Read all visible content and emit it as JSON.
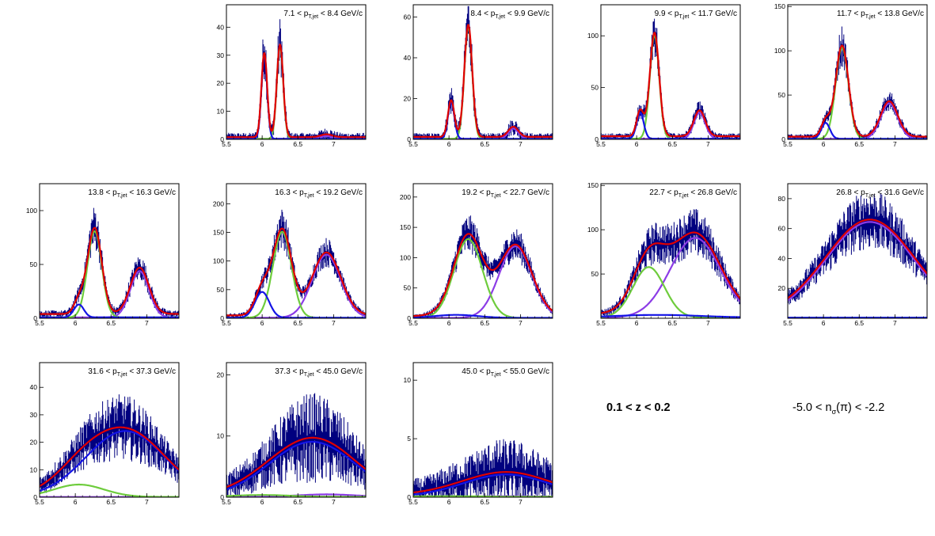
{
  "labels": {
    "z_range": "0.1 < z < 0.2",
    "nsigma_prefix": "-5.0 < n",
    "nsigma_sub": "σ",
    "nsigma_suffix": "(π) < -2.2"
  },
  "colors": {
    "data": "#00007f",
    "total_fit": "#e00000",
    "electron_fit": "#1414e6",
    "pion_fit": "#6ecc3c",
    "kaon_fit": "#8c3ce6"
  },
  "chart_data": [
    {
      "type": "scatter",
      "title": {
        "pre": "7.1 < p",
        "sub": "T,jet",
        "post": " < 8.4 GeV/c"
      },
      "xlim": [
        5.5,
        7.45
      ],
      "ylim": [
        0,
        48
      ],
      "xticks": [
        5.5,
        6,
        6.5,
        7
      ],
      "yticks": [
        0,
        10,
        20,
        30,
        40
      ],
      "components": {
        "electron": {
          "A": 30,
          "mu": 6.03,
          "sigma": 0.04
        },
        "pion": {
          "A": 33,
          "mu": 6.25,
          "sigma": 0.045
        },
        "kaon": {
          "A": 1,
          "mu": 6.9,
          "sigma": 0.08
        },
        "bg": {
          "A": 0.8
        }
      },
      "noise": 0.12
    },
    {
      "type": "scatter",
      "title": {
        "pre": "8.4 < p",
        "sub": "T,jet",
        "post": " < 9.9 GeV/c"
      },
      "xlim": [
        5.5,
        7.45
      ],
      "ylim": [
        0,
        66
      ],
      "xticks": [
        5.5,
        6,
        6.5,
        7
      ],
      "yticks": [
        0,
        20,
        40,
        60
      ],
      "components": {
        "electron": {
          "A": 18,
          "mu": 6.03,
          "sigma": 0.045
        },
        "pion": {
          "A": 55,
          "mu": 6.27,
          "sigma": 0.055
        },
        "kaon": {
          "A": 5,
          "mu": 6.9,
          "sigma": 0.07
        },
        "bg": {
          "A": 1.2
        }
      },
      "noise": 0.12
    },
    {
      "type": "scatter",
      "title": {
        "pre": "9.9 < p",
        "sub": "T,jet",
        "post": " < 11.7 GeV/c"
      },
      "xlim": [
        5.5,
        7.45
      ],
      "ylim": [
        0,
        130
      ],
      "xticks": [
        5.5,
        6,
        6.5,
        7
      ],
      "yticks": [
        0,
        50,
        100
      ],
      "components": {
        "electron": {
          "A": 25,
          "mu": 6.05,
          "sigma": 0.05
        },
        "pion": {
          "A": 100,
          "mu": 6.25,
          "sigma": 0.065
        },
        "kaon": {
          "A": 25,
          "mu": 6.88,
          "sigma": 0.08
        },
        "bg": {
          "A": 3
        }
      },
      "noise": 0.12
    },
    {
      "type": "scatter",
      "title": {
        "pre": "11.7 < p",
        "sub": "T,jet",
        "post": " < 13.8 GeV/c"
      },
      "xlim": [
        5.5,
        7.45
      ],
      "ylim": [
        0,
        152
      ],
      "xticks": [
        5.5,
        6,
        6.5,
        7
      ],
      "yticks": [
        0,
        50,
        100,
        150
      ],
      "components": {
        "electron": {
          "A": 18,
          "mu": 6.03,
          "sigma": 0.06
        },
        "pion": {
          "A": 103,
          "mu": 6.26,
          "sigma": 0.09
        },
        "kaon": {
          "A": 40,
          "mu": 6.92,
          "sigma": 0.12
        },
        "bg": {
          "A": 3
        }
      },
      "noise": 0.12
    },
    {
      "type": "scatter",
      "title": {
        "pre": "13.8 < p",
        "sub": "T,jet",
        "post": " < 16.3 GeV/c"
      },
      "xlim": [
        5.5,
        7.45
      ],
      "ylim": [
        0,
        125
      ],
      "xticks": [
        5.5,
        6,
        6.5,
        7
      ],
      "yticks": [
        0,
        50,
        100
      ],
      "components": {
        "electron": {
          "A": 12,
          "mu": 6.05,
          "sigma": 0.07
        },
        "pion": {
          "A": 80,
          "mu": 6.27,
          "sigma": 0.1
        },
        "kaon": {
          "A": 43,
          "mu": 6.9,
          "sigma": 0.13
        },
        "bg": {
          "A": 4
        }
      },
      "noise": 0.13
    },
    {
      "type": "scatter",
      "title": {
        "pre": "16.3 < p",
        "sub": "T,jet",
        "post": " < 19.2 GeV/c"
      },
      "xlim": [
        5.5,
        7.45
      ],
      "ylim": [
        0,
        235
      ],
      "xticks": [
        5.5,
        6,
        6.5,
        7
      ],
      "yticks": [
        0,
        50,
        100,
        150,
        200
      ],
      "components": {
        "electron": {
          "A": 45,
          "mu": 6.0,
          "sigma": 0.1
        },
        "pion": {
          "A": 150,
          "mu": 6.28,
          "sigma": 0.13
        },
        "kaon": {
          "A": 110,
          "mu": 6.9,
          "sigma": 0.2
        },
        "bg": {
          "A": 5
        }
      },
      "noise": 0.12
    },
    {
      "type": "scatter",
      "title": {
        "pre": "19.2 < p",
        "sub": "T,jet",
        "post": " < 22.7 GeV/c"
      },
      "xlim": [
        5.5,
        7.45
      ],
      "ylim": [
        0,
        222
      ],
      "xticks": [
        5.5,
        6,
        6.5,
        7
      ],
      "yticks": [
        0,
        50,
        100,
        150,
        200
      ],
      "components": {
        "electron": {
          "A": 5,
          "mu": 6.1,
          "sigma": 0.3
        },
        "pion": {
          "A": 130,
          "mu": 6.27,
          "sigma": 0.2
        },
        "kaon": {
          "A": 118,
          "mu": 6.93,
          "sigma": 0.23
        },
        "bg": {
          "A": 3
        }
      },
      "noise": 0.12
    },
    {
      "type": "scatter",
      "title": {
        "pre": "22.7 < p",
        "sub": "T,jet",
        "post": " < 26.8 GeV/c"
      },
      "xlim": [
        5.5,
        7.45
      ],
      "ylim": [
        0,
        152
      ],
      "xticks": [
        5.5,
        6,
        6.5,
        7
      ],
      "yticks": [
        50,
        100,
        150
      ],
      "components": {
        "electron": {
          "A": 3,
          "mu": 6.3,
          "sigma": 0.6
        },
        "pion": {
          "A": 57,
          "mu": 6.17,
          "sigma": 0.22
        },
        "kaon": {
          "A": 90,
          "mu": 6.82,
          "sigma": 0.35
        },
        "bg": {
          "A": 4
        }
      },
      "noise": 0.15
    },
    {
      "type": "scatter",
      "title": {
        "pre": "26.8 < p",
        "sub": "T,jet",
        "post": " < 31.6 GeV/c"
      },
      "xlim": [
        5.5,
        7.45
      ],
      "ylim": [
        0,
        90
      ],
      "xticks": [
        5.5,
        6,
        6.5,
        7
      ],
      "yticks": [
        20,
        40,
        60,
        80
      ],
      "components": {
        "electron": {
          "A": 0,
          "mu": 6.6,
          "sigma": 0.5
        },
        "pion": {
          "A": 0,
          "mu": 6.3,
          "sigma": 0.3
        },
        "kaon": {
          "A": 64,
          "mu": 6.65,
          "sigma": 0.62
        },
        "bg": {
          "A": 2
        }
      },
      "noise": 0.16
    },
    {
      "type": "scatter",
      "title": {
        "pre": "31.6 < p",
        "sub": "T,jet",
        "post": " < 37.3 GeV/c"
      },
      "xlim": [
        5.5,
        7.45
      ],
      "ylim": [
        0,
        49
      ],
      "xticks": [
        5.5,
        6,
        6.5,
        7
      ],
      "yticks": [
        0,
        10,
        20,
        30,
        40
      ],
      "components": {
        "electron": {
          "A": 24,
          "mu": 6.7,
          "sigma": 0.55
        },
        "pion": {
          "A": 4.5,
          "mu": 6.05,
          "sigma": 0.35
        },
        "kaon": {
          "A": 0,
          "mu": 6.9,
          "sigma": 0.3
        },
        "bg": {
          "A": 0.5
        }
      },
      "noise": 0.25
    },
    {
      "type": "scatter",
      "title": {
        "pre": "37.3 < p",
        "sub": "T,jet",
        "post": " < 45.0 GeV/c"
      },
      "xlim": [
        5.5,
        7.45
      ],
      "ylim": [
        0,
        22
      ],
      "xticks": [
        5.5,
        6,
        6.5,
        7
      ],
      "yticks": [
        0,
        10,
        20
      ],
      "components": {
        "electron": {
          "A": 9,
          "mu": 6.7,
          "sigma": 0.6
        },
        "pion": {
          "A": 0.3,
          "mu": 6.0,
          "sigma": 0.4
        },
        "kaon": {
          "A": 0.4,
          "mu": 6.9,
          "sigma": 0.4
        },
        "bg": {
          "A": 0.3
        }
      },
      "noise": 0.4
    },
    {
      "type": "scatter",
      "title": {
        "pre": "45.0 < p",
        "sub": "T,jet",
        "post": " < 55.0 GeV/c"
      },
      "xlim": [
        5.5,
        7.45
      ],
      "ylim": [
        0,
        11.5
      ],
      "xticks": [
        5.5,
        6,
        6.5,
        7
      ],
      "yticks": [
        0,
        5,
        10
      ],
      "components": {
        "electron": {
          "A": 1.9,
          "mu": 6.8,
          "sigma": 0.6
        },
        "pion": {
          "A": 0.05,
          "mu": 6.0,
          "sigma": 0.4
        },
        "kaon": {
          "A": 0.05,
          "mu": 6.9,
          "sigma": 0.4
        },
        "bg": {
          "A": 0.2
        }
      },
      "noise": 0.7
    }
  ]
}
